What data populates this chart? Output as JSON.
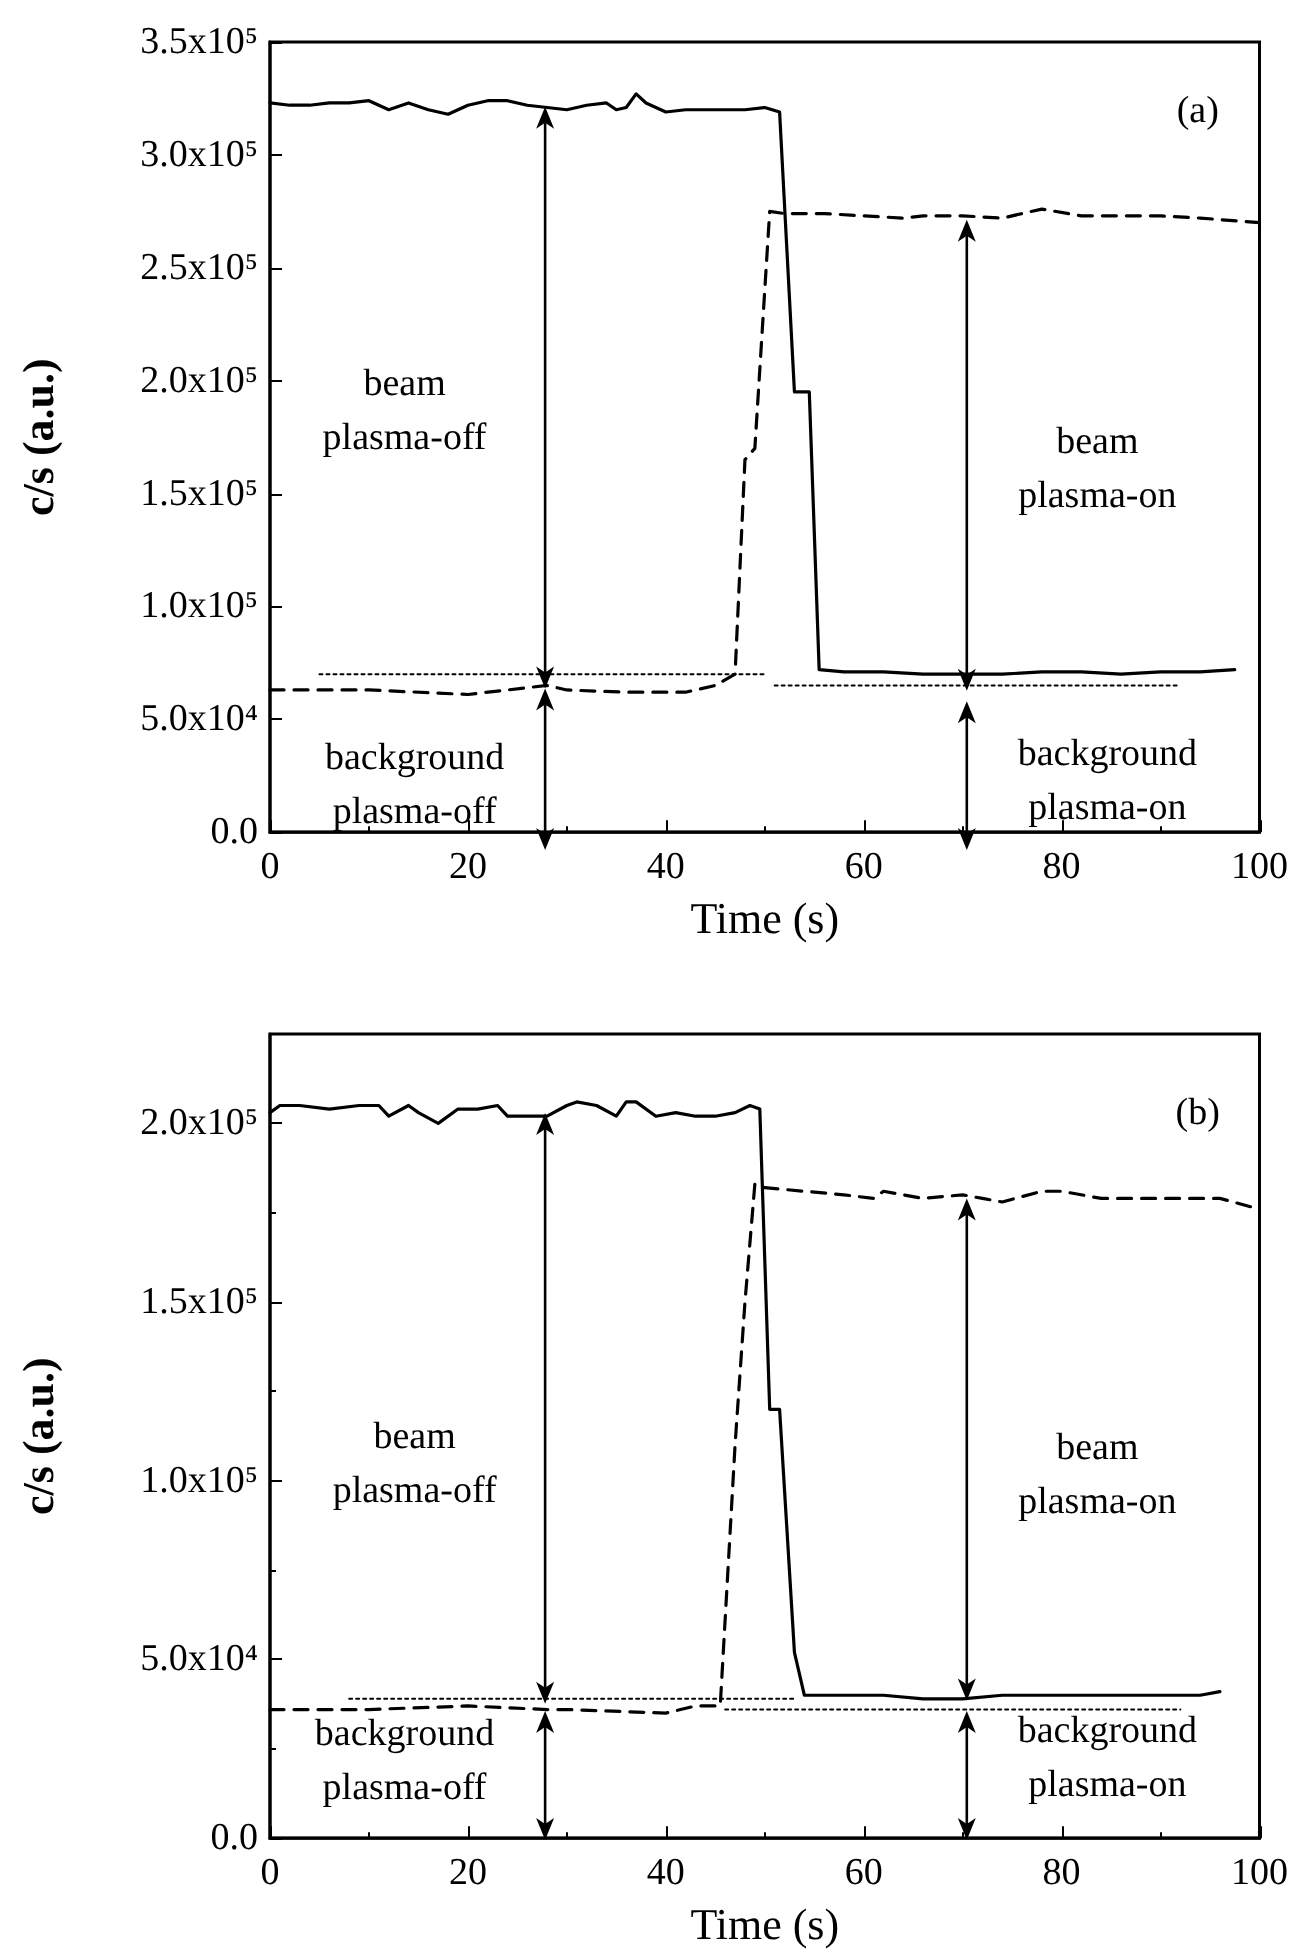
{
  "chart_data": [
    {
      "type": "line",
      "xlabel": "Time (s)",
      "ylabel": "c/s (a.u.)",
      "xlim": [
        0,
        100
      ],
      "xticks": [
        0,
        20,
        40,
        60,
        80,
        100
      ],
      "ylim": [
        0,
        350000
      ],
      "yticks": [
        {
          "value": 0,
          "label": "0.0"
        },
        {
          "value": 50000,
          "label": "5.0x10⁴"
        },
        {
          "value": 100000,
          "label": "1.0x10⁵"
        },
        {
          "value": 150000,
          "label": "1.5x10⁵"
        },
        {
          "value": 200000,
          "label": "2.0x10⁵"
        },
        {
          "value": 250000,
          "label": "2.5x10⁵"
        },
        {
          "value": 300000,
          "label": "3.0x10⁵"
        },
        {
          "value": 350000,
          "label": "3.5x10⁵"
        }
      ],
      "grid": false,
      "marker": "none",
      "series": [
        {
          "color": "#000000",
          "line_style": "solid",
          "x": [
            0,
            2,
            4,
            6,
            8,
            10,
            12,
            14,
            16,
            18,
            20,
            22,
            24,
            26,
            28,
            30,
            32,
            34,
            35,
            36,
            37,
            38,
            40,
            42,
            44,
            46,
            48,
            50,
            51.5,
            53,
            54.5,
            55.5,
            58,
            62,
            66,
            70,
            74,
            78,
            82,
            86,
            90,
            94,
            97.5
          ],
          "values": [
            323000,
            322000,
            322000,
            323000,
            323000,
            324000,
            320000,
            323000,
            320000,
            318000,
            322000,
            324000,
            324000,
            322000,
            321000,
            320000,
            322000,
            323000,
            320000,
            321000,
            327000,
            323000,
            319000,
            320000,
            320000,
            320000,
            320000,
            321000,
            319000,
            195000,
            195000,
            72000,
            71000,
            71000,
            70000,
            70000,
            70000,
            71000,
            71000,
            70000,
            71000,
            71000,
            72000
          ]
        },
        {
          "color": "#000000",
          "line_style": "dashed",
          "x": [
            0,
            10,
            20,
            28,
            30,
            36,
            42,
            45,
            47,
            48,
            49,
            50.5,
            52,
            56,
            60,
            64,
            66,
            70,
            74,
            78,
            82,
            86,
            90,
            94,
            100
          ],
          "values": [
            63000,
            63000,
            61000,
            65000,
            63000,
            62000,
            62000,
            65000,
            70000,
            165000,
            170000,
            275000,
            274000,
            274000,
            273000,
            272000,
            273000,
            273000,
            272000,
            276000,
            273000,
            273000,
            273000,
            272000,
            270000
          ]
        },
        {
          "color": "#000000",
          "line_style": "dotted",
          "x": [
            5,
            50
          ],
          "values": [
            70000,
            70000
          ]
        },
        {
          "color": "#000000",
          "line_style": "dotted",
          "x": [
            51,
            92
          ],
          "values": [
            65000,
            65000
          ]
        }
      ],
      "annotations": [
        "(a)",
        "beam\nplasma-off",
        "background\nplasma-off",
        "beam\nplasma-on",
        "background\nplasma-on"
      ]
    },
    {
      "type": "line",
      "xlabel": "Time (s)",
      "ylabel": "c/s (a.u.)",
      "xlim": [
        0,
        100
      ],
      "xticks": [
        0,
        20,
        40,
        60,
        80,
        100
      ],
      "ylim": [
        0,
        225000
      ],
      "yticks": [
        {
          "value": 0,
          "label": "0.0"
        },
        {
          "value": 50000,
          "label": "5.0x10⁴"
        },
        {
          "value": 100000,
          "label": "1.0x10⁵"
        },
        {
          "value": 150000,
          "label": "1.5x10⁵"
        },
        {
          "value": 200000,
          "label": "2.0x10⁵"
        }
      ],
      "grid": false,
      "marker": "none",
      "series": [
        {
          "color": "#000000",
          "line_style": "solid",
          "x": [
            0,
            1,
            3,
            6,
            9,
            11,
            12,
            14,
            15,
            17,
            19,
            21,
            23,
            24,
            26,
            28,
            30,
            31,
            33,
            35,
            36,
            37,
            39,
            41,
            43,
            45,
            47,
            48.5,
            49.5,
            50.5,
            51.5,
            53,
            54,
            58,
            62,
            66,
            70,
            74,
            78,
            82,
            86,
            90,
            94,
            96
          ],
          "values": [
            203000,
            205000,
            205000,
            204000,
            205000,
            205000,
            202000,
            205000,
            203000,
            200000,
            204000,
            204000,
            205000,
            202000,
            202000,
            202000,
            205000,
            206000,
            205000,
            202000,
            206000,
            206000,
            202000,
            203000,
            202000,
            202000,
            203000,
            205000,
            204000,
            120000,
            120000,
            52000,
            40000,
            40000,
            40000,
            39000,
            39000,
            40000,
            40000,
            40000,
            40000,
            40000,
            40000,
            41000
          ]
        },
        {
          "color": "#000000",
          "line_style": "dashed",
          "x": [
            0,
            10,
            20,
            28,
            30,
            40,
            43,
            45.5,
            47,
            48,
            49,
            50,
            54,
            58,
            61,
            62,
            66,
            70,
            72,
            74,
            78,
            80,
            84,
            88,
            92,
            96,
            100
          ],
          "values": [
            36000,
            36000,
            37000,
            36000,
            36000,
            35000,
            37000,
            37000,
            110000,
            150000,
            183000,
            182000,
            181000,
            180000,
            179000,
            181000,
            179000,
            180000,
            179000,
            178000,
            181000,
            181000,
            179000,
            179000,
            179000,
            179000,
            176000
          ]
        },
        {
          "color": "#000000",
          "line_style": "dotted",
          "x": [
            8,
            53
          ],
          "values": [
            39000,
            39000
          ]
        },
        {
          "color": "#000000",
          "line_style": "dotted",
          "x": [
            46,
            92
          ],
          "values": [
            36000,
            36000
          ]
        }
      ],
      "annotations": [
        "(b)",
        "beam\nplasma-off",
        "background\nplasma-off",
        "beam\nplasma-on",
        "background\nplasma-on"
      ]
    }
  ]
}
